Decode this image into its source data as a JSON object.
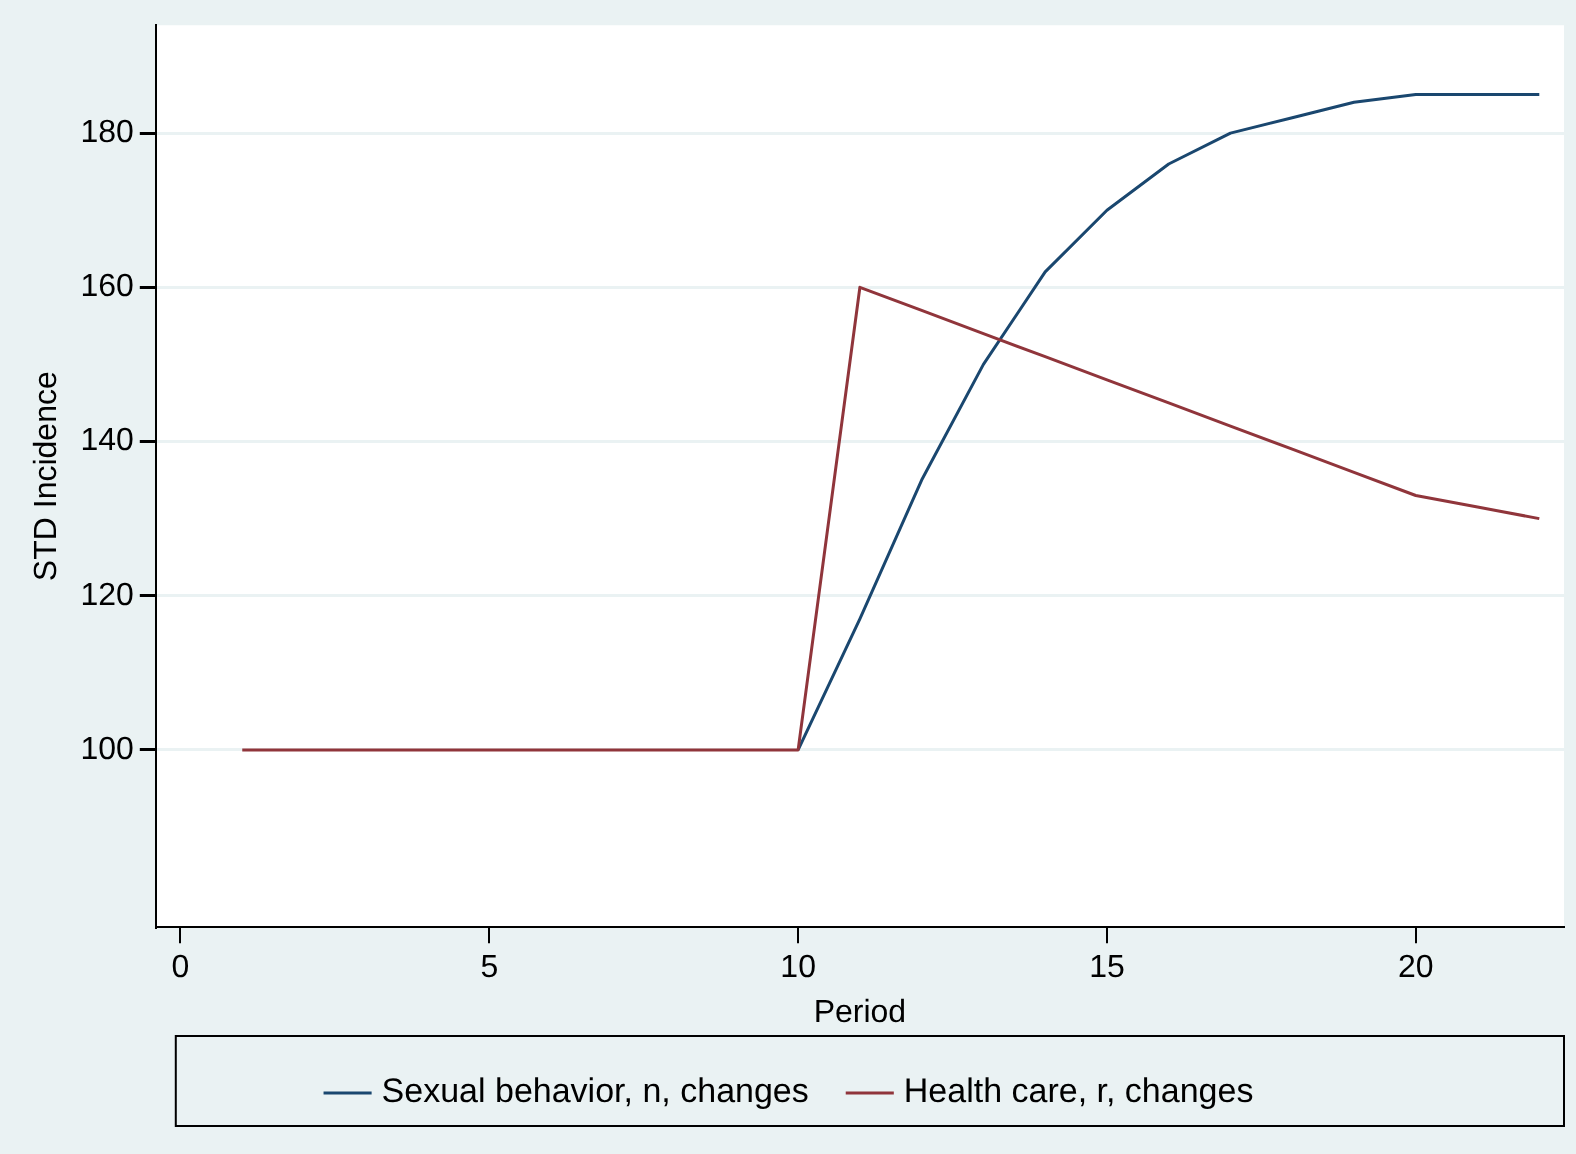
{
  "chart_data": {
    "type": "line",
    "xlabel": "Period",
    "ylabel": "STD Incidence",
    "x": [
      1,
      2,
      3,
      4,
      5,
      6,
      7,
      8,
      9,
      10,
      11,
      12,
      13,
      14,
      15,
      16,
      17,
      18,
      19,
      20,
      21,
      22
    ],
    "series": [
      {
        "name": "Sexual behavior, n, changes",
        "color": "#1a476f",
        "values": [
          null,
          null,
          null,
          null,
          null,
          null,
          null,
          null,
          null,
          100,
          117,
          135,
          150,
          162,
          170,
          176,
          180,
          182,
          184,
          185,
          185,
          185
        ]
      },
      {
        "name": "Health care, r, changes",
        "color": "#90353b",
        "values": [
          100,
          100,
          100,
          100,
          100,
          100,
          100,
          100,
          100,
          100,
          160,
          157,
          154,
          151,
          148,
          145,
          142,
          139,
          136,
          133,
          131.5,
          130
        ]
      }
    ],
    "xlim": [
      -0.4,
      22.4
    ],
    "xticks": [
      0,
      5,
      10,
      15,
      20
    ],
    "ylim": [
      77,
      194
    ],
    "yticks": [
      100,
      120,
      140,
      160,
      180
    ],
    "grid": "y",
    "legend": "bottom",
    "marker": "none",
    "line_style": "solid"
  }
}
